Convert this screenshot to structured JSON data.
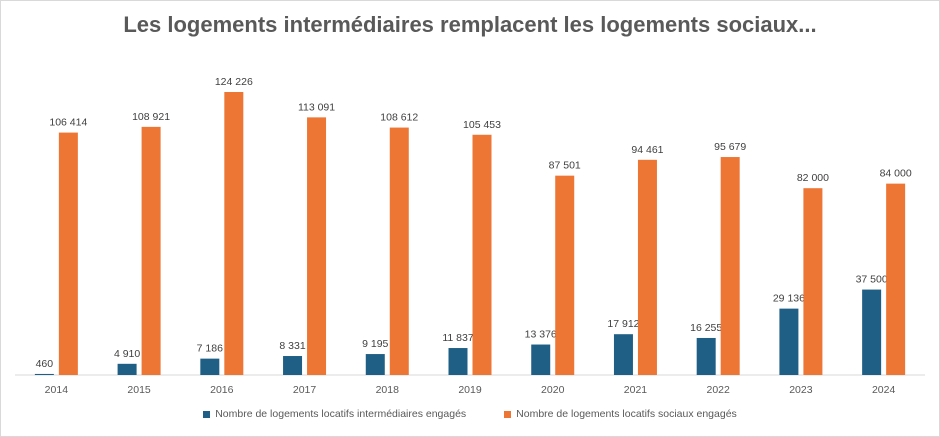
{
  "chart_data": {
    "type": "bar",
    "title": "Les logements intermédiaires remplacent les logements sociaux...",
    "categories": [
      "2014",
      "2015",
      "2016",
      "2017",
      "2018",
      "2019",
      "2020",
      "2021",
      "2022",
      "2023",
      "2024"
    ],
    "series": [
      {
        "name": "Nombre de logements locatifs intermédiaires engagés",
        "color": "#1f5f85",
        "values": [
          460,
          4910,
          7186,
          8331,
          9195,
          11837,
          13376,
          17912,
          16255,
          29136,
          37500
        ],
        "labels": [
          "460",
          "4 910",
          "7 186",
          "8 331",
          "9 195",
          "11 837",
          "13 376",
          "17 912",
          "16 255",
          "29 136",
          "37 500"
        ]
      },
      {
        "name": "Nombre de logements locatifs sociaux engagés",
        "color": "#ed7635",
        "values": [
          106414,
          108921,
          124226,
          113091,
          108612,
          105453,
          87501,
          94461,
          95679,
          82000,
          84000
        ],
        "labels": [
          "106 414",
          "108 921",
          "124 226",
          "113 091",
          "108 612",
          "105 453",
          "87 501",
          "94 461",
          "95 679",
          "82 000",
          "84 000"
        ]
      }
    ],
    "ylim": [
      0,
      124226
    ],
    "grid": false,
    "legend": "bottom"
  }
}
